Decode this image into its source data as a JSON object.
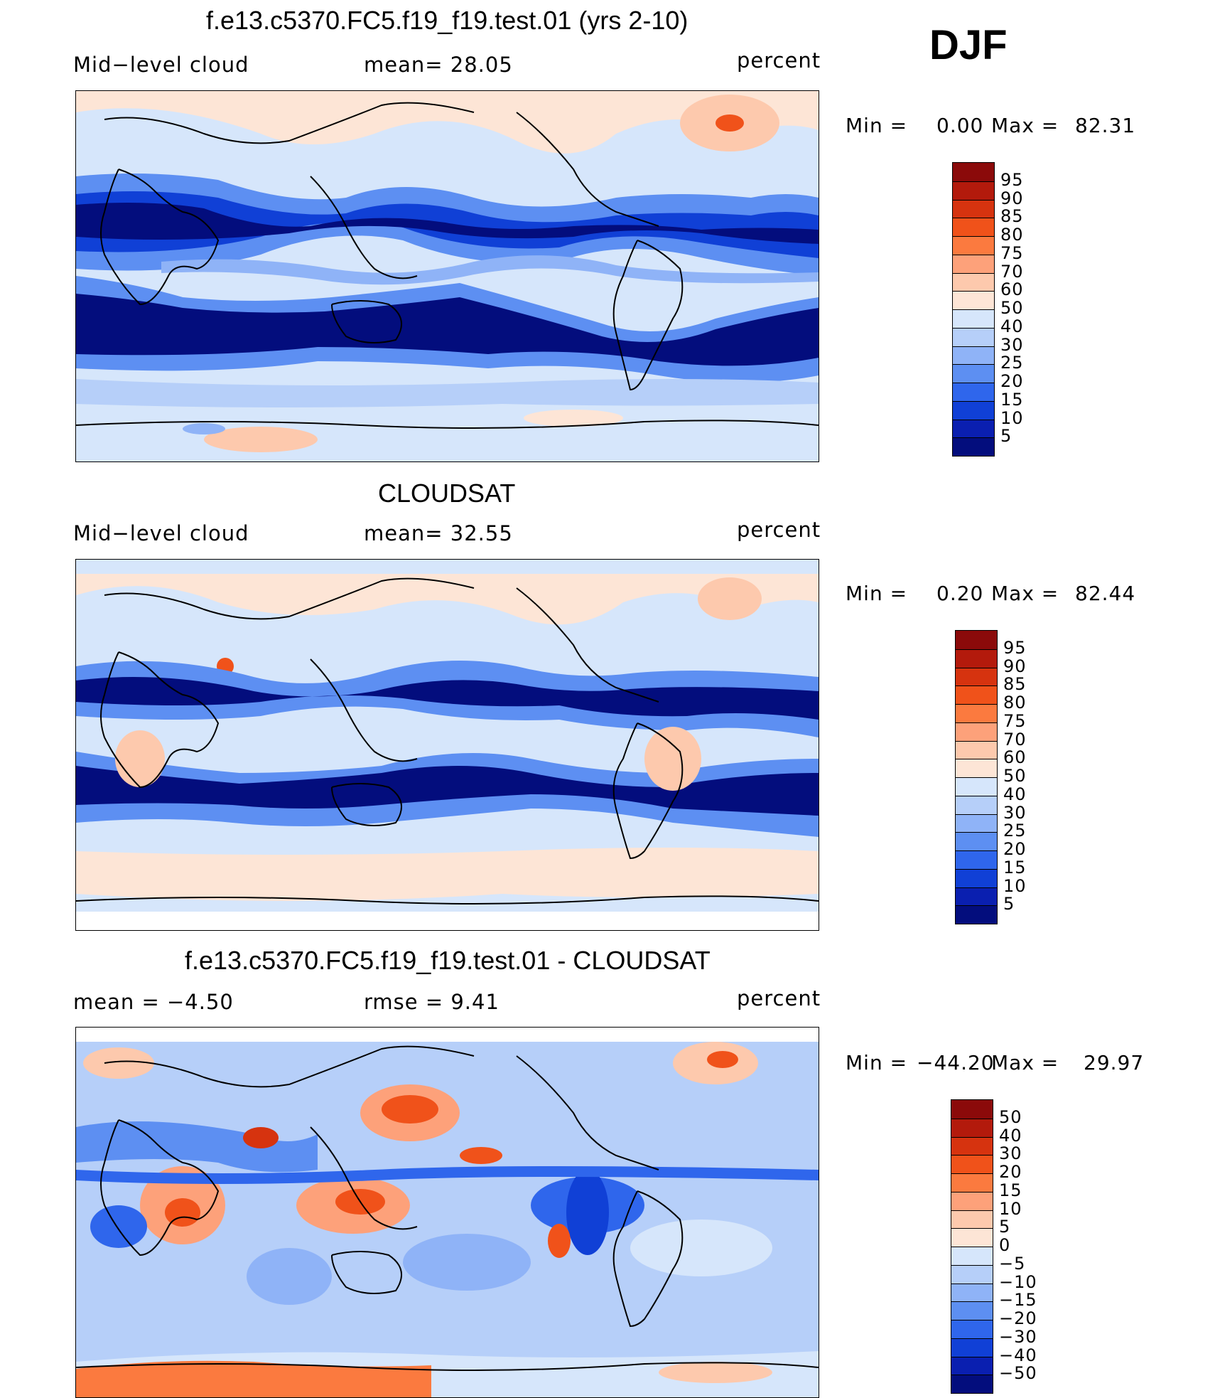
{
  "season": "DJF",
  "panels": [
    {
      "id": "model",
      "title": "f.e13.c5370.FC5.f19_f19.test.01 (yrs 2-10)",
      "left_label": "Mid−level cloud",
      "center_label": "mean=   28.05",
      "right_label": "percent",
      "min_label": "Min  =",
      "min_value": "0.00",
      "max_label": "Max  =",
      "max_value": "82.31",
      "colorbar_levels": [
        "95",
        "90",
        "85",
        "80",
        "75",
        "70",
        "60",
        "50",
        "40",
        "30",
        "25",
        "20",
        "15",
        "10",
        "5"
      ],
      "colorbar_colors": [
        "#8b0a0a",
        "#b31a0c",
        "#d6330f",
        "#f0521a",
        "#fb7a3f",
        "#fda17a",
        "#fdc9ad",
        "#fde5d6",
        "#d6e6fb",
        "#b6cff9",
        "#8fb3f7",
        "#5d8ff2",
        "#2f66ec",
        "#1040d6",
        "#0a1fb0",
        "#030d7d"
      ]
    },
    {
      "id": "obs",
      "title": "CLOUDSAT",
      "left_label": "Mid−level cloud",
      "center_label": "mean=   32.55",
      "right_label": "percent",
      "min_label": "Min  =",
      "min_value": "0.20",
      "max_label": "Max  =",
      "max_value": "82.44",
      "colorbar_levels": [
        "95",
        "90",
        "85",
        "80",
        "75",
        "70",
        "60",
        "50",
        "40",
        "30",
        "25",
        "20",
        "15",
        "10",
        "5"
      ],
      "colorbar_colors": [
        "#8b0a0a",
        "#b31a0c",
        "#d6330f",
        "#f0521a",
        "#fb7a3f",
        "#fda17a",
        "#fdc9ad",
        "#fde5d6",
        "#d6e6fb",
        "#b6cff9",
        "#8fb3f7",
        "#5d8ff2",
        "#2f66ec",
        "#1040d6",
        "#0a1fb0",
        "#030d7d"
      ]
    },
    {
      "id": "diff",
      "title": "f.e13.c5370.FC5.f19_f19.test.01 - CLOUDSAT",
      "left_label": "mean  =    −4.50",
      "center_label": "rmse  =     9.41",
      "right_label": "percent",
      "min_label": "Min  =",
      "min_value": "−44.20",
      "max_label": "Max  =",
      "max_value": "29.97",
      "colorbar_levels": [
        "50",
        "40",
        "30",
        "20",
        "15",
        "10",
        "5",
        "0",
        "−5",
        "−10",
        "−15",
        "−20",
        "−30",
        "−40",
        "−50"
      ],
      "colorbar_colors": [
        "#8b0a0a",
        "#b31a0c",
        "#d6330f",
        "#f0521a",
        "#fb7a3f",
        "#fda17a",
        "#fdc9ad",
        "#fde5d6",
        "#d6e6fb",
        "#b6cff9",
        "#8fb3f7",
        "#5d8ff2",
        "#2f66ec",
        "#1040d6",
        "#0a1fb0",
        "#030d7d"
      ]
    }
  ]
}
